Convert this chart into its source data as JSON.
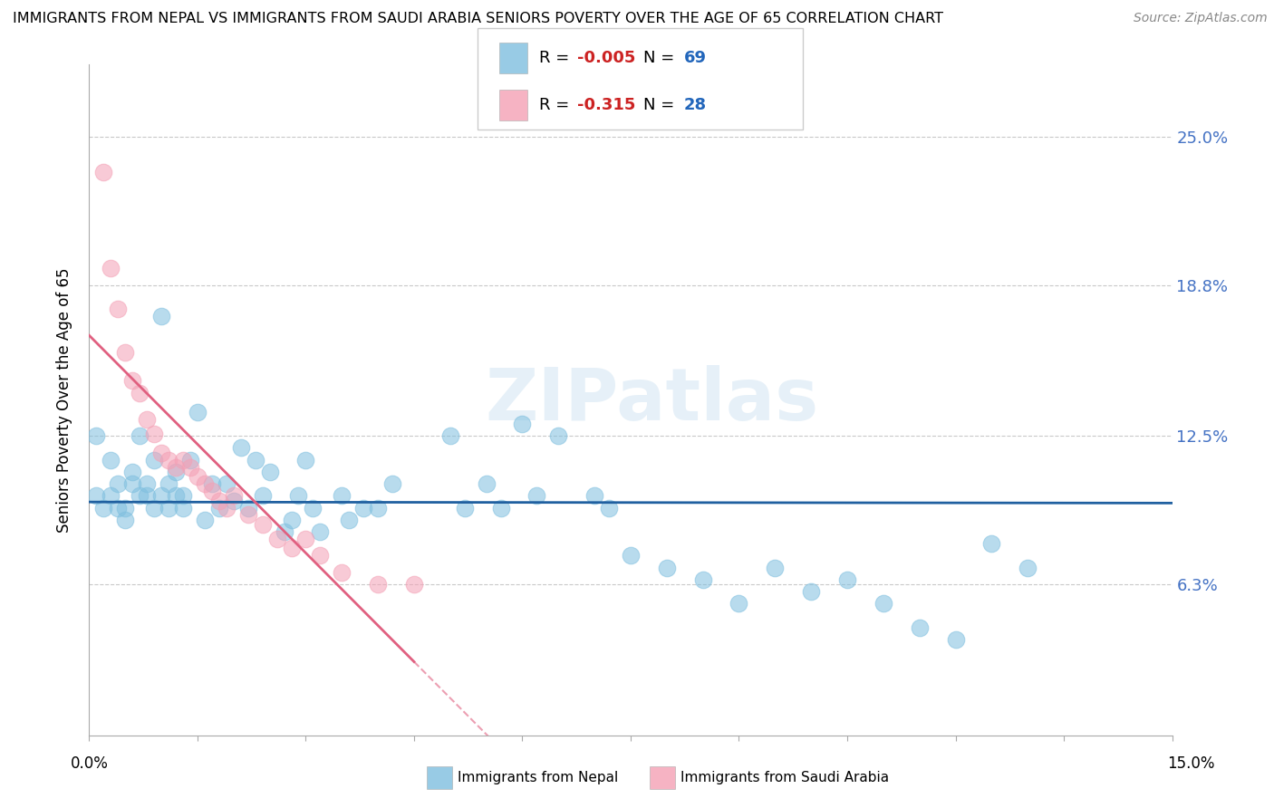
{
  "title": "IMMIGRANTS FROM NEPAL VS IMMIGRANTS FROM SAUDI ARABIA SENIORS POVERTY OVER THE AGE OF 65 CORRELATION CHART",
  "source": "Source: ZipAtlas.com",
  "ylabel": "Seniors Poverty Over the Age of 65",
  "ytick_labels": [
    "25.0%",
    "18.8%",
    "12.5%",
    "6.3%"
  ],
  "ytick_values": [
    0.25,
    0.188,
    0.125,
    0.063
  ],
  "xlim": [
    0.0,
    0.15
  ],
  "ylim": [
    0.0,
    0.28
  ],
  "legend_nepal_R": "-0.005",
  "legend_nepal_N": "69",
  "legend_saudi_R": "-0.315",
  "legend_saudi_N": "28",
  "nepal_color": "#7fbfdf",
  "saudi_color": "#f4a0b5",
  "nepal_line_color": "#2060a0",
  "saudi_line_color": "#e06080",
  "watermark": "ZIPatlas",
  "nepal_scatter": [
    [
      0.001,
      0.125
    ],
    [
      0.003,
      0.115
    ],
    [
      0.004,
      0.105
    ],
    [
      0.005,
      0.095
    ],
    [
      0.006,
      0.11
    ],
    [
      0.007,
      0.125
    ],
    [
      0.008,
      0.1
    ],
    [
      0.009,
      0.115
    ],
    [
      0.01,
      0.175
    ],
    [
      0.011,
      0.105
    ],
    [
      0.012,
      0.11
    ],
    [
      0.013,
      0.1
    ],
    [
      0.014,
      0.115
    ],
    [
      0.015,
      0.135
    ],
    [
      0.016,
      0.09
    ],
    [
      0.017,
      0.105
    ],
    [
      0.018,
      0.095
    ],
    [
      0.019,
      0.105
    ],
    [
      0.02,
      0.098
    ],
    [
      0.021,
      0.12
    ],
    [
      0.022,
      0.095
    ],
    [
      0.023,
      0.115
    ],
    [
      0.024,
      0.1
    ],
    [
      0.025,
      0.11
    ],
    [
      0.027,
      0.085
    ],
    [
      0.028,
      0.09
    ],
    [
      0.029,
      0.1
    ],
    [
      0.03,
      0.115
    ],
    [
      0.031,
      0.095
    ],
    [
      0.032,
      0.085
    ],
    [
      0.035,
      0.1
    ],
    [
      0.036,
      0.09
    ],
    [
      0.038,
      0.095
    ],
    [
      0.04,
      0.095
    ],
    [
      0.042,
      0.105
    ],
    [
      0.05,
      0.125
    ],
    [
      0.052,
      0.095
    ],
    [
      0.055,
      0.105
    ],
    [
      0.057,
      0.095
    ],
    [
      0.06,
      0.13
    ],
    [
      0.062,
      0.1
    ],
    [
      0.065,
      0.125
    ],
    [
      0.07,
      0.1
    ],
    [
      0.072,
      0.095
    ],
    [
      0.075,
      0.075
    ],
    [
      0.08,
      0.07
    ],
    [
      0.085,
      0.065
    ],
    [
      0.09,
      0.055
    ],
    [
      0.095,
      0.07
    ],
    [
      0.1,
      0.06
    ],
    [
      0.105,
      0.065
    ],
    [
      0.11,
      0.055
    ],
    [
      0.115,
      0.045
    ],
    [
      0.12,
      0.04
    ],
    [
      0.125,
      0.08
    ],
    [
      0.13,
      0.07
    ],
    [
      0.001,
      0.1
    ],
    [
      0.002,
      0.095
    ],
    [
      0.003,
      0.1
    ],
    [
      0.004,
      0.095
    ],
    [
      0.005,
      0.09
    ],
    [
      0.006,
      0.105
    ],
    [
      0.007,
      0.1
    ],
    [
      0.008,
      0.105
    ],
    [
      0.009,
      0.095
    ],
    [
      0.01,
      0.1
    ],
    [
      0.011,
      0.095
    ],
    [
      0.012,
      0.1
    ],
    [
      0.013,
      0.095
    ]
  ],
  "saudi_scatter": [
    [
      0.002,
      0.235
    ],
    [
      0.003,
      0.195
    ],
    [
      0.004,
      0.178
    ],
    [
      0.005,
      0.16
    ],
    [
      0.006,
      0.148
    ],
    [
      0.007,
      0.143
    ],
    [
      0.008,
      0.132
    ],
    [
      0.009,
      0.126
    ],
    [
      0.01,
      0.118
    ],
    [
      0.011,
      0.115
    ],
    [
      0.012,
      0.112
    ],
    [
      0.013,
      0.115
    ],
    [
      0.014,
      0.112
    ],
    [
      0.015,
      0.108
    ],
    [
      0.016,
      0.105
    ],
    [
      0.017,
      0.102
    ],
    [
      0.018,
      0.098
    ],
    [
      0.019,
      0.095
    ],
    [
      0.02,
      0.1
    ],
    [
      0.022,
      0.092
    ],
    [
      0.024,
      0.088
    ],
    [
      0.026,
      0.082
    ],
    [
      0.028,
      0.078
    ],
    [
      0.03,
      0.082
    ],
    [
      0.032,
      0.075
    ],
    [
      0.035,
      0.068
    ],
    [
      0.04,
      0.063
    ],
    [
      0.045,
      0.063
    ]
  ]
}
